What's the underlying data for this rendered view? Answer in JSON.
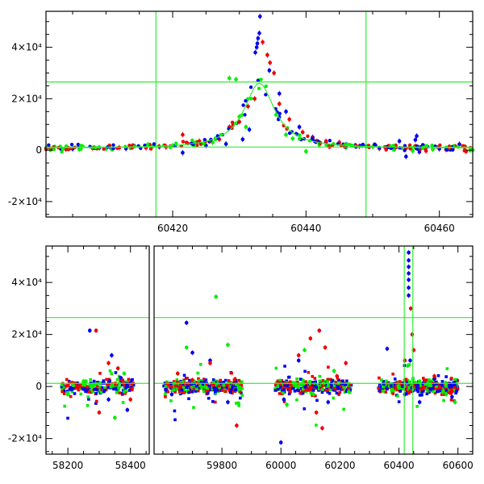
{
  "chart_data": [
    {
      "type": "scatter",
      "title": "",
      "xlabel": "",
      "ylabel": "",
      "xlim": [
        60401,
        60465
      ],
      "ylim": [
        -26000,
        54000
      ],
      "x_ticks": [
        60420,
        60440,
        60460
      ],
      "y_ticks": [
        {
          "value": -20000,
          "label": "-2×10⁴"
        },
        {
          "value": 0,
          "label": "0"
        },
        {
          "value": 20000,
          "label": "2×10⁴"
        },
        {
          "value": 40000,
          "label": "4×10⁴"
        }
      ],
      "guides": {
        "x": [
          60417.5,
          60449
        ],
        "y": [
          26500,
          1200
        ]
      },
      "series": [
        {
          "color": "#0000ee",
          "points": [
            [
              60405,
              500
            ],
            [
              60409,
              900
            ],
            [
              60413,
              600
            ],
            [
              60418,
              1300
            ],
            [
              60421.5,
              -1000
            ],
            [
              60425,
              1800
            ],
            [
              60428,
              2400
            ],
            [
              60430.5,
              4200
            ],
            [
              60431.5,
              8000
            ],
            [
              60432.4,
              38000
            ],
            [
              60432.6,
              40000
            ],
            [
              60432.7,
              41500
            ],
            [
              60432.8,
              43500
            ],
            [
              60433,
              45500
            ],
            [
              60433.1,
              52000
            ],
            [
              60434.5,
              31000
            ],
            [
              60436,
              22000
            ],
            [
              60437,
              15000
            ],
            [
              60439,
              9000
            ],
            [
              60441,
              5000
            ],
            [
              60443,
              3000
            ],
            [
              60446,
              2200
            ],
            [
              60449,
              1500
            ],
            [
              60452,
              800
            ],
            [
              60454,
              3500
            ],
            [
              60455,
              -2500
            ],
            [
              60456.4,
              4000
            ],
            [
              60456.6,
              5500
            ],
            [
              60457,
              -700
            ],
            [
              60460,
              500
            ],
            [
              60463,
              2300
            ]
          ]
        },
        {
          "color": "#ee0000",
          "points": [
            [
              60404,
              300
            ],
            [
              60408,
              700
            ],
            [
              60412,
              1000
            ],
            [
              60416,
              900
            ],
            [
              60419,
              1200
            ],
            [
              60421.5,
              6000
            ],
            [
              60424,
              3500
            ],
            [
              60427,
              4200
            ],
            [
              60428.5,
              9000
            ],
            [
              60430,
              11000
            ],
            [
              60431.3,
              17000
            ],
            [
              60432.3,
              20000
            ],
            [
              60433.5,
              42000
            ],
            [
              60434.2,
              37000
            ],
            [
              60434.6,
              34000
            ],
            [
              60435.2,
              30000
            ],
            [
              60436,
              18000
            ],
            [
              60437.5,
              12000
            ],
            [
              60439.5,
              7000
            ],
            [
              60441,
              4500
            ],
            [
              60443,
              3500
            ],
            [
              60445,
              3000
            ],
            [
              60448,
              1500
            ],
            [
              60451,
              600
            ],
            [
              60455,
              800
            ],
            [
              60458,
              -300
            ],
            [
              60461,
              200
            ],
            [
              60464,
              -500
            ]
          ]
        },
        {
          "color": "#00ee00",
          "points": [
            [
              60403,
              1000
            ],
            [
              60406,
              300
            ],
            [
              60410,
              500
            ],
            [
              60414,
              1200
            ],
            [
              60417,
              1500
            ],
            [
              60420,
              1800
            ],
            [
              60423,
              2200
            ],
            [
              60426,
              3000
            ],
            [
              60428.5,
              28000
            ],
            [
              60429.5,
              27500
            ],
            [
              60430,
              13000
            ],
            [
              60431,
              9000
            ],
            [
              60437,
              6000
            ],
            [
              60438,
              4500
            ],
            [
              60440,
              -500
            ],
            [
              60442,
              2000
            ],
            [
              60446,
              1000
            ],
            [
              60450,
              1300
            ],
            [
              60453,
              500
            ],
            [
              60456,
              -300
            ],
            [
              60459,
              300
            ],
            [
              60462,
              1000
            ],
            [
              60465,
              0
            ]
          ]
        }
      ],
      "model_curve": {
        "color": "#00ee00",
        "peak_x": 60433,
        "peak_y": 26000,
        "baseline_y": 700,
        "width": 2.8
      }
    },
    {
      "type": "scatter",
      "title": "",
      "xlabel": "",
      "ylabel": "",
      "x_axis_break": true,
      "segments": [
        {
          "xlim": [
            58130,
            58460
          ],
          "x_ticks": [
            58200,
            58400
          ]
        },
        {
          "xlim": [
            59570,
            60650
          ],
          "x_ticks": [
            59800,
            60000,
            60200,
            60400,
            60600
          ]
        }
      ],
      "ylim": [
        -26000,
        54000
      ],
      "y_ticks": [
        {
          "value": -20000,
          "label": "-2×10⁴"
        },
        {
          "value": 0,
          "label": "0"
        },
        {
          "value": 20000,
          "label": "2×10⁴"
        },
        {
          "value": 40000,
          "label": "4×10⁴"
        }
      ],
      "guides": {
        "x": [
          60418,
          60447
        ],
        "y": [
          26500,
          1200
        ]
      },
      "seasons": [
        [
          58180,
          58410
        ],
        [
          59600,
          59870
        ],
        [
          59980,
          60240
        ],
        [
          60330,
          60600
        ]
      ],
      "series": [
        {
          "color": "#0000ee",
          "points": [
            [
              58270,
              21500
            ],
            [
              58330,
              -5000
            ],
            [
              58340,
              12000
            ],
            [
              58390,
              -9000
            ],
            [
              59630,
              -3000
            ],
            [
              59680,
              24500
            ],
            [
              59700,
              13000
            ],
            [
              59760,
              10000
            ],
            [
              59820,
              -6000
            ],
            [
              60000,
              -21500
            ],
            [
              60010,
              -5000
            ],
            [
              60060,
              10000
            ],
            [
              60160,
              -6000
            ],
            [
              60360,
              14500
            ],
            [
              60420,
              -3000
            ],
            [
              60433,
              35000
            ],
            [
              60433,
              38000
            ],
            [
              60433,
              41000
            ],
            [
              60433,
              43500
            ],
            [
              60433,
              46000
            ],
            [
              60433,
              48500
            ],
            [
              60433,
              51500
            ],
            [
              60438,
              10000
            ],
            [
              60470,
              -6000
            ],
            [
              60520,
              3000
            ],
            [
              60580,
              -4000
            ]
          ]
        },
        {
          "color": "#ee0000",
          "points": [
            [
              58290,
              21500
            ],
            [
              58300,
              -10000
            ],
            [
              58330,
              9000
            ],
            [
              58360,
              7000
            ],
            [
              58400,
              -5000
            ],
            [
              59650,
              5000
            ],
            [
              59700,
              2500
            ],
            [
              59760,
              9000
            ],
            [
              59850,
              -15000
            ],
            [
              60060,
              12000
            ],
            [
              60100,
              18500
            ],
            [
              60120,
              -10000
            ],
            [
              60130,
              21500
            ],
            [
              60140,
              -16000
            ],
            [
              60150,
              15000
            ],
            [
              60190,
              4000
            ],
            [
              60220,
              9000
            ],
            [
              60420,
              10000
            ],
            [
              60440,
              30000
            ],
            [
              60445,
              20000
            ],
            [
              60450,
              14000
            ],
            [
              60520,
              4000
            ],
            [
              60580,
              -2000
            ]
          ]
        },
        {
          "color": "#00ee00",
          "points": [
            [
              58200,
              -3000
            ],
            [
              58250,
              2000
            ],
            [
              58350,
              -12000
            ],
            [
              58380,
              5000
            ],
            [
              59680,
              15000
            ],
            [
              59780,
              34500
            ],
            [
              59820,
              16000
            ],
            [
              59860,
              -1000
            ],
            [
              60020,
              -7000
            ],
            [
              60080,
              14000
            ],
            [
              60110,
              -3000
            ],
            [
              60180,
              6000
            ],
            [
              60230,
              -2000
            ],
            [
              60380,
              -1500
            ],
            [
              60430,
              8000
            ],
            [
              60470,
              2000
            ],
            [
              60560,
              -3000
            ],
            [
              60590,
              -6000
            ]
          ]
        }
      ]
    }
  ]
}
